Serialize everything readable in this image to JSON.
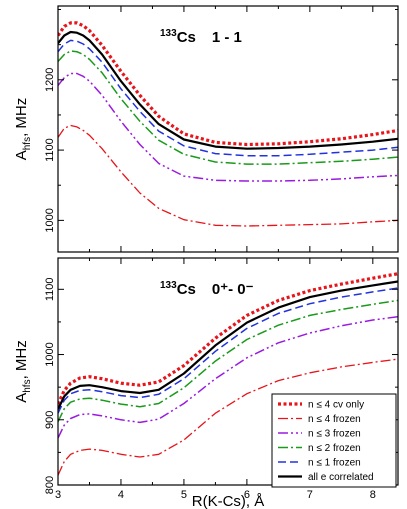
{
  "chart_data": [
    {
      "type": "line",
      "panel_label": {
        "sup": "133",
        "text": "Cs",
        "state": "1 - 1"
      },
      "ylabel": {
        "main": "A",
        "sub": "hfs",
        "rest": ", MHz"
      },
      "xlim": [
        3.0,
        8.4
      ],
      "ylim": [
        955,
        1305
      ],
      "yticks": [
        1000,
        1100,
        1200
      ],
      "x": [
        3.0,
        3.1,
        3.2,
        3.3,
        3.4,
        3.5,
        3.7,
        4.0,
        4.3,
        4.6,
        5.0,
        5.5,
        6.0,
        6.5,
        7.0,
        7.5,
        8.0,
        8.4
      ],
      "series": [
        {
          "name": "n ≤ 4 cv only",
          "color": "#e8141a",
          "dash": "dotted",
          "width": 3.2,
          "values": [
            1263,
            1276,
            1281,
            1281,
            1277,
            1270,
            1249,
            1212,
            1178,
            1148,
            1123,
            1111,
            1108,
            1109,
            1112,
            1116,
            1122,
            1128
          ]
        },
        {
          "name": "n ≤ 4 frozen",
          "color": "#e8141a",
          "dash": "dashdot",
          "width": 1.3,
          "values": [
            1118,
            1131,
            1135,
            1133,
            1128,
            1121,
            1102,
            1069,
            1039,
            1017,
            1001,
            993,
            992,
            993,
            994,
            995,
            998,
            1000
          ]
        },
        {
          "name": "n ≤ 3 frozen",
          "color": "#9a1ae0",
          "dash": "dashdotdot",
          "width": 1.5,
          "values": [
            1192,
            1203,
            1209,
            1209,
            1205,
            1198,
            1178,
            1141,
            1108,
            1081,
            1063,
            1057,
            1056,
            1056,
            1057,
            1059,
            1062,
            1064
          ]
        },
        {
          "name": "n ≤ 2 frozen",
          "color": "#1a9a1a",
          "dash": "dashdot",
          "width": 1.5,
          "values": [
            1226,
            1236,
            1241,
            1240,
            1236,
            1229,
            1210,
            1173,
            1141,
            1114,
            1094,
            1083,
            1080,
            1080,
            1082,
            1084,
            1087,
            1090
          ]
        },
        {
          "name": "n ≤ 1 frozen",
          "color": "#2233dd",
          "dash": "dashed",
          "width": 1.5,
          "values": [
            1240,
            1251,
            1256,
            1255,
            1251,
            1244,
            1225,
            1187,
            1155,
            1127,
            1106,
            1095,
            1092,
            1092,
            1094,
            1097,
            1100,
            1104
          ]
        },
        {
          "name": "all e correlated",
          "color": "#000000",
          "dash": "solid",
          "width": 2.2,
          "values": [
            1252,
            1263,
            1268,
            1267,
            1263,
            1256,
            1236,
            1198,
            1165,
            1137,
            1115,
            1105,
            1102,
            1103,
            1105,
            1108,
            1112,
            1116
          ]
        }
      ]
    },
    {
      "type": "line",
      "panel_label": {
        "sup": "133",
        "text": "Cs",
        "state": "0⁺- 0⁻"
      },
      "ylabel": {
        "main": "A",
        "sub": "hfs",
        "rest": ", MHz"
      },
      "xlabel": "R(K-Cs), Å",
      "xlim": [
        3.0,
        8.4
      ],
      "xticks": [
        3,
        4,
        5,
        6,
        7,
        8
      ],
      "ylim": [
        800,
        1148
      ],
      "yticks": [
        800,
        900,
        1000,
        1100
      ],
      "legend": {
        "position": "bottom-right"
      },
      "x": [
        3.0,
        3.1,
        3.2,
        3.35,
        3.5,
        3.7,
        4.0,
        4.3,
        4.6,
        5.0,
        5.5,
        6.0,
        6.5,
        7.0,
        7.5,
        8.0,
        8.4
      ],
      "series": [
        {
          "name": "n ≤ 4 cv only",
          "color": "#e8141a",
          "dash": "dotted",
          "width": 3.2,
          "values": [
            924,
            945,
            956,
            964,
            966,
            963,
            956,
            953,
            958,
            983,
            1025,
            1060,
            1083,
            1098,
            1108,
            1117,
            1124
          ]
        },
        {
          "name": "n ≤ 4 frozen",
          "color": "#e8141a",
          "dash": "dashdot",
          "width": 1.3,
          "values": [
            815,
            836,
            847,
            853,
            855,
            853,
            847,
            843,
            847,
            869,
            910,
            940,
            960,
            972,
            981,
            988,
            993
          ]
        },
        {
          "name": "n ≤ 3 frozen",
          "color": "#9a1ae0",
          "dash": "dashdotdot",
          "width": 1.5,
          "values": [
            872,
            892,
            902,
            908,
            909,
            906,
            900,
            896,
            901,
            925,
            963,
            995,
            1018,
            1033,
            1044,
            1053,
            1058
          ]
        },
        {
          "name": "n ≤ 2 frozen",
          "color": "#1a9a1a",
          "dash": "dashdot",
          "width": 1.5,
          "values": [
            897,
            917,
            927,
            932,
            933,
            930,
            924,
            920,
            925,
            949,
            990,
            1023,
            1045,
            1060,
            1069,
            1077,
            1083
          ]
        },
        {
          "name": "n ≤ 1 frozen",
          "color": "#2233dd",
          "dash": "dashed",
          "width": 1.5,
          "values": [
            910,
            930,
            940,
            945,
            946,
            943,
            937,
            934,
            939,
            963,
            1005,
            1040,
            1063,
            1078,
            1088,
            1096,
            1102
          ]
        },
        {
          "name": "all e correlated",
          "color": "#000000",
          "dash": "solid",
          "width": 2.2,
          "values": [
            916,
            936,
            946,
            952,
            953,
            950,
            944,
            941,
            946,
            971,
            1014,
            1049,
            1072,
            1088,
            1098,
            1106,
            1112
          ]
        }
      ]
    }
  ]
}
